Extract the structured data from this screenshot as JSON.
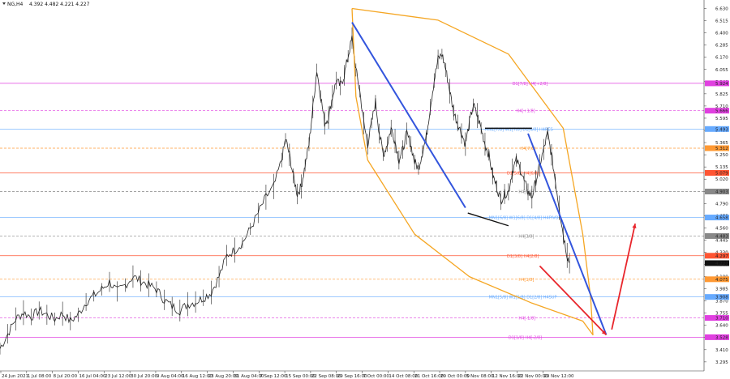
{
  "header": {
    "symbol": "NG,H4",
    "ohlc": "4.392 4.482 4.221 4.227"
  },
  "chart_data": {
    "type": "candlestick",
    "symbol": "NG",
    "timeframe": "H4",
    "ylim": [
      3.21,
      6.68
    ],
    "x_range": [
      0,
      750
    ],
    "y_ticks": [
      "6.630",
      "6.515",
      "6.400",
      "6.285",
      "6.170",
      "6.055",
      "5.940",
      "5.825",
      "5.710",
      "5.595",
      "5.480",
      "5.365",
      "5.250",
      "5.135",
      "5.020",
      "4.905",
      "4.790",
      "4.675",
      "4.560",
      "4.445",
      "4.330",
      "4.215",
      "4.100",
      "3.985",
      "3.870",
      "3.755",
      "3.640",
      "3.525",
      "3.410",
      "3.295"
    ],
    "x_ticks": [
      {
        "label": "24 Jun 2021",
        "x": 0
      },
      {
        "label": "1 Jul 08:00",
        "x": 33
      },
      {
        "label": "8 Jul 20:00",
        "x": 66
      },
      {
        "label": "16 Jul 04:00",
        "x": 99
      },
      {
        "label": "23 Jul 12:00",
        "x": 132
      },
      {
        "label": "30 Jul 20:00",
        "x": 165
      },
      {
        "label": "9 Aug 04:00",
        "x": 198
      },
      {
        "label": "16 Aug 12:00",
        "x": 231
      },
      {
        "label": "23 Aug 20:00",
        "x": 264
      },
      {
        "label": "31 Aug 04:00",
        "x": 297
      },
      {
        "label": "7 Sep 12:00",
        "x": 330
      },
      {
        "label": "15 Sep 00:00",
        "x": 363
      },
      {
        "label": "22 Sep 08:00",
        "x": 396
      },
      {
        "label": "29 Sep 16:00",
        "x": 429
      },
      {
        "label": "7 Oct 00:00",
        "x": 462
      },
      {
        "label": "14 Oct 08:00",
        "x": 495
      },
      {
        "label": "21 Oct 16:00",
        "x": 528
      },
      {
        "label": "29 Oct 00:00",
        "x": 561
      },
      {
        "label": "5 Nov 08:00",
        "x": 594
      },
      {
        "label": "12 Nov 16:00",
        "x": 627
      },
      {
        "label": "22 Nov 00:00",
        "x": 660
      },
      {
        "label": "29 Nov 12:00",
        "x": 693
      }
    ],
    "price_path": [
      [
        0,
        3.42
      ],
      [
        10,
        3.56
      ],
      [
        20,
        3.7
      ],
      [
        30,
        3.76
      ],
      [
        40,
        3.72
      ],
      [
        50,
        3.78
      ],
      [
        60,
        3.74
      ],
      [
        70,
        3.7
      ],
      [
        80,
        3.75
      ],
      [
        90,
        3.68
      ],
      [
        100,
        3.74
      ],
      [
        110,
        3.86
      ],
      [
        120,
        3.92
      ],
      [
        130,
        3.98
      ],
      [
        140,
        4.05
      ],
      [
        150,
        3.96
      ],
      [
        160,
        4.02
      ],
      [
        170,
        4.1
      ],
      [
        180,
        4.06
      ],
      [
        190,
        4.02
      ],
      [
        200,
        3.98
      ],
      [
        210,
        3.88
      ],
      [
        220,
        3.82
      ],
      [
        230,
        3.78
      ],
      [
        240,
        3.84
      ],
      [
        250,
        3.86
      ],
      [
        260,
        3.9
      ],
      [
        270,
        3.95
      ],
      [
        280,
        4.1
      ],
      [
        290,
        4.3
      ],
      [
        300,
        4.35
      ],
      [
        310,
        4.42
      ],
      [
        320,
        4.55
      ],
      [
        330,
        4.7
      ],
      [
        340,
        4.85
      ],
      [
        350,
        4.95
      ],
      [
        360,
        5.2
      ],
      [
        365,
        5.4
      ],
      [
        370,
        5.25
      ],
      [
        375,
        5.05
      ],
      [
        380,
        4.88
      ],
      [
        385,
        4.95
      ],
      [
        390,
        5.15
      ],
      [
        395,
        5.35
      ],
      [
        400,
        5.7
      ],
      [
        405,
        6.05
      ],
      [
        410,
        5.8
      ],
      [
        415,
        5.55
      ],
      [
        420,
        5.6
      ],
      [
        425,
        5.8
      ],
      [
        430,
        5.95
      ],
      [
        435,
        5.9
      ],
      [
        440,
        6.0
      ],
      [
        445,
        6.18
      ],
      [
        450,
        6.35
      ],
      [
        455,
        6.05
      ],
      [
        460,
        5.85
      ],
      [
        465,
        5.55
      ],
      [
        470,
        5.35
      ],
      [
        475,
        5.55
      ],
      [
        480,
        5.75
      ],
      [
        485,
        5.45
      ],
      [
        490,
        5.25
      ],
      [
        495,
        5.35
      ],
      [
        500,
        5.5
      ],
      [
        505,
        5.38
      ],
      [
        510,
        5.2
      ],
      [
        515,
        5.3
      ],
      [
        520,
        5.45
      ],
      [
        525,
        5.35
      ],
      [
        530,
        5.18
      ],
      [
        535,
        5.12
      ],
      [
        540,
        5.28
      ],
      [
        545,
        5.42
      ],
      [
        550,
        5.7
      ],
      [
        555,
        5.95
      ],
      [
        560,
        6.15
      ],
      [
        565,
        6.2
      ],
      [
        570,
        6.05
      ],
      [
        575,
        5.85
      ],
      [
        580,
        5.65
      ],
      [
        585,
        5.55
      ],
      [
        590,
        5.45
      ],
      [
        595,
        5.35
      ],
      [
        600,
        5.55
      ],
      [
        605,
        5.72
      ],
      [
        610,
        5.62
      ],
      [
        615,
        5.5
      ],
      [
        620,
        5.35
      ],
      [
        625,
        5.25
      ],
      [
        630,
        5.05
      ],
      [
        635,
        4.95
      ],
      [
        640,
        4.82
      ],
      [
        645,
        4.88
      ],
      [
        650,
        4.9
      ],
      [
        655,
        5.1
      ],
      [
        660,
        5.2
      ],
      [
        665,
        5.12
      ],
      [
        670,
        5.0
      ],
      [
        675,
        4.9
      ],
      [
        680,
        4.85
      ],
      [
        685,
        5.0
      ],
      [
        690,
        5.15
      ],
      [
        695,
        5.3
      ],
      [
        700,
        5.45
      ],
      [
        705,
        5.25
      ],
      [
        710,
        5.0
      ],
      [
        715,
        4.75
      ],
      [
        720,
        4.5
      ],
      [
        725,
        4.3
      ],
      [
        728,
        4.227
      ]
    ],
    "levels": [
      {
        "price": 5.924,
        "color": "#e040e0",
        "style": "solid",
        "label": "D1[7/8] H4[+2/8]",
        "label_x": 655,
        "tag": "5.924"
      },
      {
        "price": 5.666,
        "color": "#e040e0",
        "style": "dashed",
        "label": "H4[+1/8]",
        "label_x": 660,
        "tag": "5.666"
      },
      {
        "price": 5.493,
        "color": "#66aaff",
        "style": "solid",
        "label": "MN1[7/8] W1[7/8] D1[6/8] H4RES",
        "label_x": 620,
        "tag": "5.493"
      },
      {
        "price": 5.312,
        "color": "#ff9933",
        "style": "dashed",
        "label": "H4[7/8]",
        "label_x": 665,
        "tag": "5.312"
      },
      {
        "price": 5.079,
        "color": "#ff5533",
        "style": "solid",
        "label": "D1[5/8] H4[6/8]",
        "label_x": 648,
        "tag": "5.079"
      },
      {
        "price": 4.903,
        "color": "#888888",
        "style": "dashed",
        "label": "H4[5/8]",
        "label_x": 663,
        "tag": "4.903"
      },
      {
        "price": 4.658,
        "color": "#66aaff",
        "style": "solid",
        "label": "MN1[6/8] W1[6/8] D1[4/8] H4PIVOT",
        "label_x": 625,
        "tag": "4.658"
      },
      {
        "price": 4.483,
        "color": "#888888",
        "style": "dashed",
        "label": "H4[3/8]",
        "label_x": 663,
        "tag": "4.483"
      },
      {
        "price": 4.297,
        "color": "#ff5533",
        "style": "solid",
        "label": "D1[3/8] H4[2/8]",
        "label_x": 648,
        "tag": "4.297"
      },
      {
        "price": 4.075,
        "color": "#ff9933",
        "style": "dashed",
        "label": "H4[1/8]",
        "label_x": 663,
        "tag": "4.075"
      },
      {
        "price": 3.908,
        "color": "#66aaff",
        "style": "solid",
        "label": "MN1[5/8] W1[5/8] D1[2/8] H4SUP",
        "label_x": 625,
        "tag": "3.908"
      },
      {
        "price": 3.71,
        "color": "#e040e0",
        "style": "dashed",
        "label": "H4[-1/8]",
        "label_x": 663,
        "tag": "3.710"
      },
      {
        "price": 3.528,
        "color": "#e040e0",
        "style": "solid",
        "label": "D1[1/8] H4[-2/8]",
        "label_x": 650,
        "tag": "3.528"
      }
    ],
    "current_price": {
      "price": 4.227,
      "tag": "4.227"
    },
    "arc": {
      "color": "#f5a623",
      "points": [
        [
          450,
          6.63
        ],
        [
          560,
          6.52
        ],
        [
          650,
          6.2
        ],
        [
          720,
          5.5
        ],
        [
          745,
          4.5
        ],
        [
          755,
          3.9
        ],
        [
          758,
          3.55
        ],
        [
          745,
          3.68
        ],
        [
          680,
          3.85
        ],
        [
          600,
          4.1
        ],
        [
          530,
          4.5
        ],
        [
          470,
          5.2
        ],
        [
          455,
          5.8
        ],
        [
          450,
          6.63
        ]
      ]
    },
    "blue_line": [
      [
        450,
        6.5
      ],
      [
        595,
        4.75
      ]
    ],
    "blue_line2": [
      [
        675,
        5.45
      ],
      [
        775,
        3.55
      ]
    ],
    "black_segments": [
      [
        [
          598,
          4.7
        ],
        [
          650,
          4.58
        ]
      ],
      [
        [
          620,
          5.5
        ],
        [
          680,
          5.5
        ]
      ]
    ],
    "red_arrow_down": [
      [
        690,
        4.2
      ],
      [
        775,
        3.55
      ]
    ],
    "red_arrow_up": [
      [
        782,
        3.6
      ],
      [
        812,
        4.6
      ]
    ]
  }
}
